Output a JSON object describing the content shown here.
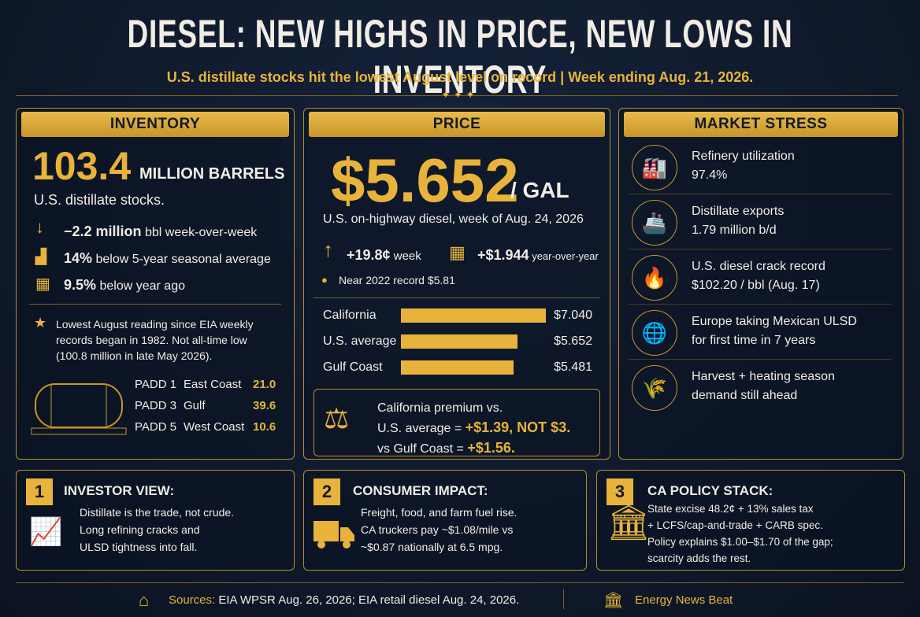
{
  "header": {
    "title": "DIESEL: NEW HIGHS IN PRICE, NEW LOWS IN INVENTORY",
    "subtitle": "U.S. distillate stocks hit the lowest August level on record | Week ending Aug. 21, 2026."
  },
  "inventory": {
    "heading": "INVENTORY",
    "big_number": "103.4",
    "unit": "MILLION BARRELS",
    "description": "U.S. distillate stocks.",
    "stats": [
      {
        "value": "−2.2 million",
        "text": "bbl week-over-week"
      },
      {
        "value": "14%",
        "text": "below 5-year seasonal average"
      },
      {
        "value": "9.5%",
        "text": "below year ago"
      }
    ],
    "note": "Lowest August reading since EIA weekly records began in 1982. Not all-time low (100.8 million in late May 2026).",
    "padd": [
      [
        "PADD 1",
        "East Coast",
        "21.0"
      ],
      [
        "PADD 3",
        "Gulf",
        "39.6"
      ],
      [
        "PADD 5",
        "West Coast",
        "10.6"
      ]
    ]
  },
  "price": {
    "heading": "PRICE",
    "big_number": "$5.652",
    "unit": "/ GAL",
    "description": "U.S. on-highway diesel, week of Aug. 24, 2026",
    "changes": [
      {
        "value": "+19.8¢",
        "text": "week"
      },
      {
        "value": "+$1.944",
        "text": "year-over-year"
      }
    ],
    "record": "Near 2022 record $5.81",
    "bars": {
      "categories": [
        "California",
        "U.S. average",
        "Gulf Coast"
      ],
      "values": [
        7.04,
        5.652,
        5.481
      ],
      "value_labels": [
        "$7.040",
        "$5.652",
        "$5.481"
      ],
      "color": "#e8b33a"
    },
    "premium": {
      "line1": "California premium vs.",
      "line2": "U.S. average =",
      "highlight1": "+$1.39, NOT $3.",
      "line3": "vs Gulf Coast =",
      "highlight2": "+$1.56."
    }
  },
  "market_stress": {
    "heading": "MARKET STRESS",
    "items": [
      {
        "title": "Refinery utilization",
        "detail": "97.4%"
      },
      {
        "title": "Distillate exports",
        "detail": "1.79 million b/d"
      },
      {
        "title": "U.S. diesel crack record",
        "detail": "$102.20 / bbl (Aug. 17)"
      },
      {
        "title": "Europe taking Mexican ULSD",
        "detail": "for first time in 7 years"
      },
      {
        "title": "Harvest + heating season",
        "detail": "demand still ahead"
      }
    ]
  },
  "cards": [
    {
      "number": "1",
      "title": "INVESTOR VIEW:",
      "lines": [
        "Distillate is the trade, not crude.",
        "Long refining cracks and",
        "ULSD tightness into fall."
      ]
    },
    {
      "number": "2",
      "title": "CONSUMER IMPACT:",
      "lines": [
        "Freight, food, and farm fuel rise.",
        "CA truckers pay ~$1.08/mile vs",
        "~$0.87 nationally at 6.5 mpg."
      ]
    },
    {
      "number": "3",
      "title": "CA POLICY STACK:",
      "lines": [
        "State excise 48.2¢ + 13% sales tax",
        "+ LCFS/cap-and-trade + CARB spec.",
        "Policy explains $1.00–$1.70 of the gap;",
        "scarcity adds the rest."
      ]
    }
  ],
  "footer": {
    "sources_label": "Sources:",
    "sources": "EIA WPSR Aug. 26, 2026; EIA retail diesel Aug. 24, 2026.",
    "brand": "Energy News Beat"
  }
}
